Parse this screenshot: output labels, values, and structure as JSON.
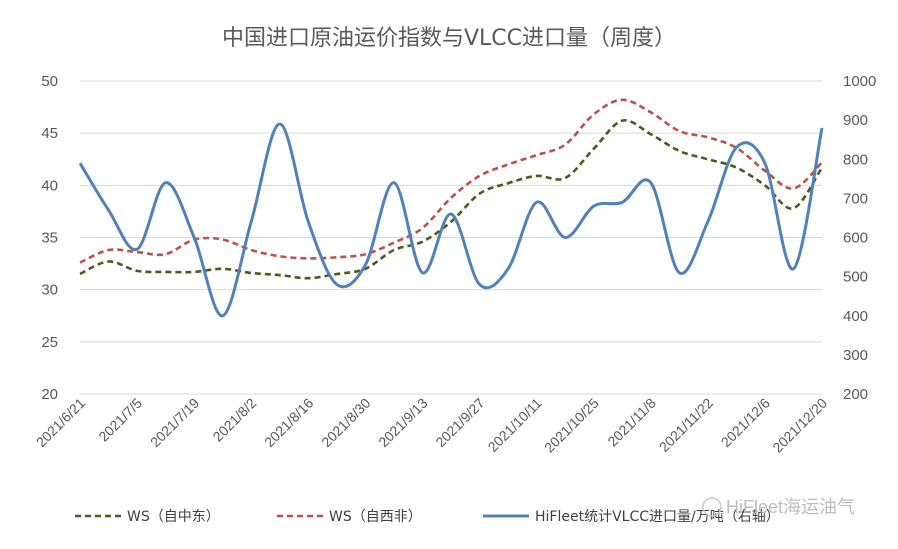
{
  "chart_data": {
    "type": "line",
    "title": "中国进口原油运价指数与VLCC进口量（周度）",
    "categories": [
      "2021/6/21",
      "2021/6/28",
      "2021/7/5",
      "2021/7/12",
      "2021/7/19",
      "2021/7/26",
      "2021/8/2",
      "2021/8/9",
      "2021/8/16",
      "2021/8/23",
      "2021/8/30",
      "2021/9/6",
      "2021/9/13",
      "2021/9/20",
      "2021/9/27",
      "2021/10/4",
      "2021/10/11",
      "2021/10/18",
      "2021/10/25",
      "2021/11/1",
      "2021/11/8",
      "2021/11/15",
      "2021/11/22",
      "2021/11/29",
      "2021/12/6",
      "2021/12/13",
      "2021/12/20"
    ],
    "x_tick_labels": [
      "2021/6/21",
      "2021/7/5",
      "2021/7/19",
      "2021/8/2",
      "2021/8/16",
      "2021/8/30",
      "2021/9/13",
      "2021/9/27",
      "2021/10/11",
      "2021/10/25",
      "2021/11/8",
      "2021/11/22",
      "2021/12/6",
      "2021/12/20"
    ],
    "y_left": {
      "ticks": [
        20,
        25,
        30,
        35,
        40,
        45,
        50
      ],
      "ylim": [
        20,
        50
      ]
    },
    "y_right": {
      "ticks": [
        200,
        300,
        400,
        500,
        600,
        700,
        800,
        900,
        1000
      ],
      "ylim": [
        200,
        1000
      ]
    },
    "series": [
      {
        "name": "WS（自中东）",
        "axis": "left",
        "color": "#4d5a1e",
        "dash": "dashed",
        "values": [
          31.5,
          32.7,
          31.8,
          31.7,
          31.7,
          32.0,
          31.6,
          31.4,
          31.1,
          31.5,
          32.0,
          33.8,
          34.6,
          36.5,
          39.2,
          40.2,
          40.9,
          40.7,
          43.5,
          46.2,
          44.9,
          43.3,
          42.5,
          41.7,
          40.0,
          37.8,
          41.7
        ]
      },
      {
        "name": "WS（自西非）",
        "axis": "left",
        "color": "#c0504d",
        "dash": "dashed",
        "values": [
          32.6,
          33.8,
          33.6,
          33.4,
          34.8,
          34.8,
          33.8,
          33.2,
          33.0,
          33.1,
          33.4,
          34.5,
          35.9,
          38.8,
          40.9,
          42.0,
          42.9,
          43.9,
          46.8,
          48.2,
          47.0,
          45.2,
          44.6,
          43.6,
          41.4,
          39.7,
          42.2
        ]
      },
      {
        "name": "HiFleet统计VLCC进口量/万吨（右轴）",
        "axis": "right",
        "color": "#4f81bd",
        "dash": "solid",
        "values": [
          790,
          670,
          570,
          740,
          600,
          400,
          640,
          890,
          640,
          480,
          530,
          740,
          510,
          660,
          480,
          520,
          690,
          600,
          680,
          690,
          740,
          510,
          640,
          830,
          790,
          520,
          880
        ]
      }
    ]
  },
  "watermark": "HiFleet海运油气"
}
